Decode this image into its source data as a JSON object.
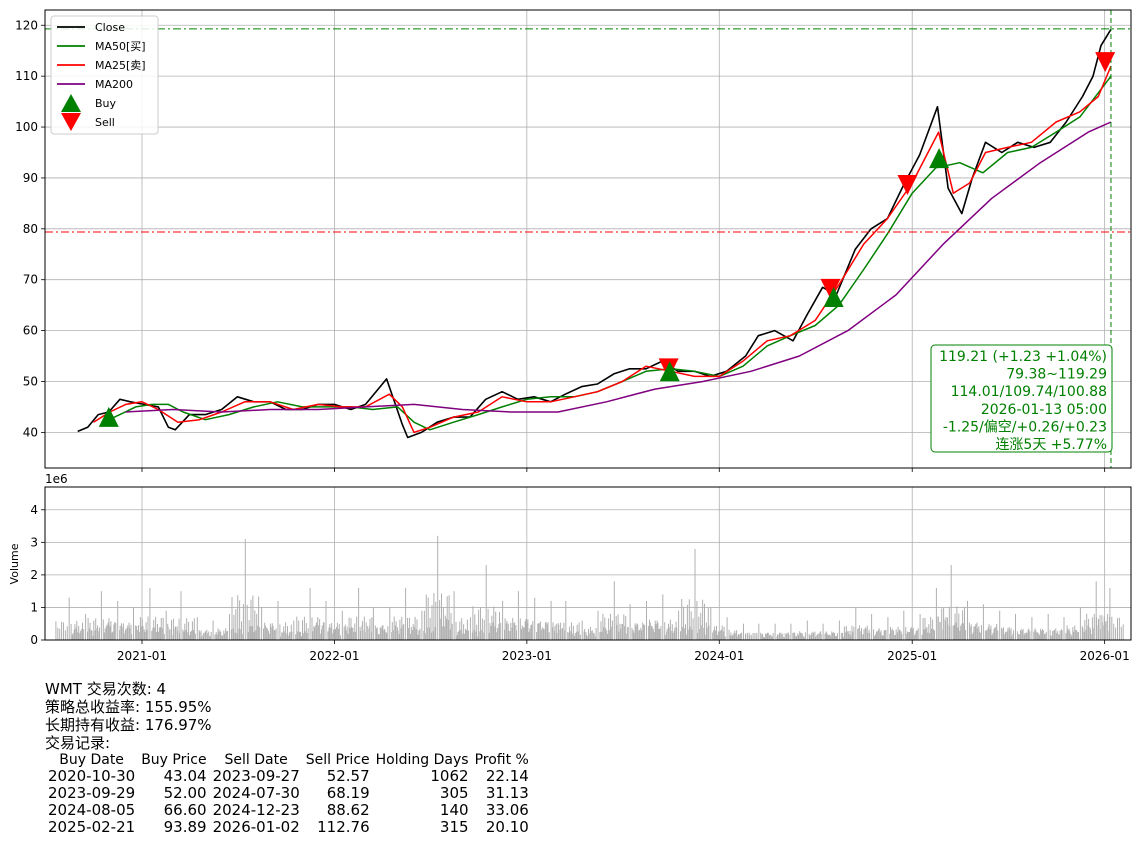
{
  "chart_data": [
    {
      "type": "line",
      "panel": "price",
      "ylim": [
        33,
        123
      ],
      "yticks": [
        40,
        50,
        60,
        70,
        80,
        90,
        100,
        110,
        120
      ],
      "xlim": [
        "2020-07-01",
        "2026-02-20"
      ],
      "xticks": [
        "2021-01",
        "2022-01",
        "2023-01",
        "2024-01",
        "2025-01",
        "2026-01"
      ],
      "grid": true,
      "legend": {
        "position": "top-left",
        "entries": [
          {
            "label": "Close",
            "color": "#000000",
            "kind": "line"
          },
          {
            "label": "MA50[买]",
            "color": "#008000",
            "kind": "line"
          },
          {
            "label": "MA25[卖]",
            "color": "#ff0000",
            "kind": "line"
          },
          {
            "label": "MA200",
            "color": "#800080",
            "kind": "line"
          },
          {
            "label": "Buy",
            "color": "#008000",
            "kind": "marker-up"
          },
          {
            "label": "Sell",
            "color": "#ff0000",
            "kind": "marker-down"
          }
        ]
      },
      "series": [
        {
          "name": "Close",
          "color": "#000000",
          "x": [
            "2020-09-01",
            "2020-09-20",
            "2020-10-10",
            "2020-10-30",
            "2020-11-20",
            "2020-12-10",
            "2021-01-05",
            "2021-02-01",
            "2021-02-20",
            "2021-03-05",
            "2021-04-01",
            "2021-05-01",
            "2021-06-01",
            "2021-07-01",
            "2021-08-01",
            "2021-09-01",
            "2021-10-01",
            "2021-11-01",
            "2021-12-01",
            "2022-01-01",
            "2022-02-01",
            "2022-03-01",
            "2022-04-10",
            "2022-05-10",
            "2022-05-20",
            "2022-06-15",
            "2022-07-15",
            "2022-08-15",
            "2022-09-15",
            "2022-10-15",
            "2022-11-15",
            "2022-12-15",
            "2023-01-15",
            "2023-02-15",
            "2023-03-15",
            "2023-04-15",
            "2023-05-15",
            "2023-06-15",
            "2023-07-15",
            "2023-08-15",
            "2023-09-15",
            "2023-10-15",
            "2023-11-15",
            "2023-12-15",
            "2024-01-15",
            "2024-02-20",
            "2024-03-15",
            "2024-04-15",
            "2024-05-20",
            "2024-06-15",
            "2024-07-15",
            "2024-08-10",
            "2024-09-15",
            "2024-10-15",
            "2024-11-15",
            "2024-12-15",
            "2025-01-15",
            "2025-02-18",
            "2025-03-10",
            "2025-04-05",
            "2025-04-25",
            "2025-05-20",
            "2025-06-20",
            "2025-07-20",
            "2025-08-20",
            "2025-09-20",
            "2025-10-20",
            "2025-11-20",
            "2025-12-10",
            "2025-12-25",
            "2026-01-13"
          ],
          "y": [
            40.2,
            41,
            43.5,
            44,
            46.5,
            46,
            45.5,
            45,
            41,
            40.5,
            43.5,
            43.5,
            44.5,
            47,
            46,
            46,
            44.5,
            44.5,
            45.5,
            45.5,
            44.5,
            45.5,
            50.5,
            41.5,
            39,
            40,
            42,
            43,
            43,
            46.5,
            48,
            46.5,
            47,
            46,
            47.5,
            49,
            49.5,
            51.5,
            52.5,
            52.5,
            54,
            52,
            52,
            51,
            52,
            55,
            59,
            60,
            58,
            63,
            68.5,
            67,
            76,
            80,
            82,
            88.5,
            94.5,
            104,
            88,
            83,
            90,
            97,
            95,
            97,
            96,
            97,
            101,
            106,
            110,
            116,
            119.21
          ]
        },
        {
          "name": "MA50[买]",
          "color": "#008000",
          "x": [
            "2020-10-20",
            "2020-11-20",
            "2020-12-20",
            "2021-01-20",
            "2021-02-20",
            "2021-03-20",
            "2021-05-01",
            "2021-06-15",
            "2021-08-01",
            "2021-09-15",
            "2021-11-01",
            "2021-12-15",
            "2022-02-01",
            "2022-03-15",
            "2022-05-01",
            "2022-06-01",
            "2022-07-01",
            "2022-08-15",
            "2022-10-01",
            "2022-11-15",
            "2023-01-01",
            "2023-02-15",
            "2023-04-01",
            "2023-05-15",
            "2023-07-01",
            "2023-08-15",
            "2023-10-01",
            "2023-11-15",
            "2024-01-01",
            "2024-02-15",
            "2024-04-01",
            "2024-05-15",
            "2024-07-01",
            "2024-08-15",
            "2024-10-01",
            "2024-11-15",
            "2025-01-01",
            "2025-02-15",
            "2025-04-01",
            "2025-05-15",
            "2025-07-01",
            "2025-08-15",
            "2025-10-01",
            "2025-11-15",
            "2026-01-13"
          ],
          "y": [
            42,
            43.5,
            45,
            45.5,
            45.5,
            44,
            42.5,
            43.5,
            45,
            46,
            45,
            45,
            45,
            44.5,
            45,
            42,
            40.5,
            42,
            43.5,
            45,
            46.5,
            47,
            47,
            48,
            50,
            52,
            52.5,
            52,
            51,
            53,
            57,
            59,
            61,
            65,
            72,
            79,
            87,
            92,
            93,
            91,
            95,
            96,
            99,
            102,
            110
          ]
        },
        {
          "name": "MA25[卖]",
          "color": "#ff0000",
          "x": [
            "2020-10-01",
            "2020-11-01",
            "2020-12-01",
            "2021-01-01",
            "2021-02-01",
            "2021-03-10",
            "2021-04-20",
            "2021-06-01",
            "2021-07-15",
            "2021-09-01",
            "2021-10-15",
            "2021-12-01",
            "2022-01-15",
            "2022-03-01",
            "2022-04-15",
            "2022-05-10",
            "2022-06-01",
            "2022-07-01",
            "2022-08-15",
            "2022-10-01",
            "2022-11-15",
            "2023-01-01",
            "2023-02-15",
            "2023-04-01",
            "2023-05-15",
            "2023-07-01",
            "2023-08-15",
            "2023-10-01",
            "2023-11-15",
            "2024-01-01",
            "2024-02-15",
            "2024-04-01",
            "2024-05-15",
            "2024-07-01",
            "2024-08-15",
            "2024-10-01",
            "2024-11-15",
            "2025-01-01",
            "2025-02-20",
            "2025-03-20",
            "2025-04-20",
            "2025-05-20",
            "2025-07-01",
            "2025-08-15",
            "2025-10-01",
            "2025-11-15",
            "2025-12-20",
            "2026-01-13"
          ],
          "y": [
            42,
            44,
            45.5,
            46,
            44.5,
            42,
            42.5,
            44,
            46,
            46,
            44.5,
            45.5,
            45,
            45,
            47.5,
            45,
            40,
            41,
            43,
            44,
            47,
            46,
            46,
            47,
            48,
            50,
            53,
            52,
            51,
            51,
            54,
            58,
            59,
            62,
            69,
            77,
            82,
            89,
            99,
            87,
            89,
            95,
            96,
            97,
            101,
            103,
            106,
            112
          ]
        },
        {
          "name": "MA200",
          "color": "#800080",
          "x": [
            "2020-12-01",
            "2021-03-01",
            "2021-06-01",
            "2021-09-01",
            "2021-12-01",
            "2022-03-01",
            "2022-06-01",
            "2022-09-01",
            "2022-12-01",
            "2023-03-01",
            "2023-06-01",
            "2023-09-01",
            "2023-12-01",
            "2024-03-01",
            "2024-06-01",
            "2024-09-01",
            "2024-12-01",
            "2025-03-01",
            "2025-06-01",
            "2025-09-01",
            "2025-12-01",
            "2026-01-13"
          ],
          "y": [
            44,
            44.5,
            44,
            44.5,
            44.5,
            45,
            45.5,
            44.5,
            44,
            44,
            46,
            48.5,
            50,
            52,
            55,
            60,
            67,
            77,
            86,
            93,
            99,
            101
          ]
        }
      ],
      "markers": [
        {
          "kind": "Buy",
          "x": "2020-10-30",
          "y": 43.04
        },
        {
          "kind": "Sell",
          "x": "2023-09-27",
          "y": 52.57
        },
        {
          "kind": "Buy",
          "x": "2023-09-29",
          "y": 52.0
        },
        {
          "kind": "Sell",
          "x": "2024-07-30",
          "y": 68.19
        },
        {
          "kind": "Buy",
          "x": "2024-08-05",
          "y": 66.6
        },
        {
          "kind": "Sell",
          "x": "2024-12-23",
          "y": 88.62
        },
        {
          "kind": "Buy",
          "x": "2025-02-21",
          "y": 93.89
        },
        {
          "kind": "Sell",
          "x": "2026-01-02",
          "y": 112.76
        }
      ],
      "reference_lines": [
        {
          "orientation": "horizontal",
          "y": 119.29,
          "color": "#008000",
          "style": "dash-dot"
        },
        {
          "orientation": "horizontal",
          "y": 79.38,
          "color": "#ff0000",
          "style": "dash-dot"
        },
        {
          "orientation": "vertical",
          "x": "2026-01-13",
          "color": "#008000",
          "style": "dashed"
        }
      ],
      "annotation": {
        "position": "bottom-right",
        "color": "#008000",
        "lines": [
          "119.21 (+1.23 +1.04%)",
          "79.38~119.29",
          "114.01/109.74/100.88",
          "2026-01-13 05:00",
          "-1.25/偏空/+0.26/+0.23",
          "连涨5天 +5.77%"
        ]
      }
    },
    {
      "type": "bar",
      "panel": "volume",
      "ylabel": "Volume",
      "yscale_label": "1e6",
      "ylim": [
        0,
        4.7
      ],
      "yticks": [
        0,
        1,
        2,
        3,
        4
      ],
      "xlim": [
        "2020-07-01",
        "2026-02-20"
      ],
      "xticks": [
        "2021-01",
        "2022-01",
        "2023-01",
        "2024-01",
        "2025-01",
        "2026-01"
      ],
      "grid": true,
      "color": "#b0b0b0",
      "series": [
        {
          "x": [
            "2020-08-15",
            "2020-09-15",
            "2020-10-15",
            "2020-11-15",
            "2020-12-15",
            "2021-01-15",
            "2021-02-15",
            "2021-03-15",
            "2021-04-15",
            "2021-05-15",
            "2021-06-15",
            "2021-07-15",
            "2021-08-15",
            "2021-09-15",
            "2021-10-15",
            "2021-11-15",
            "2021-12-15",
            "2022-01-15",
            "2022-02-15",
            "2022-03-15",
            "2022-04-15",
            "2022-05-15",
            "2022-06-15",
            "2022-07-15",
            "2022-08-15",
            "2022-09-15",
            "2022-10-15",
            "2022-11-15",
            "2022-12-15",
            "2023-01-15",
            "2023-02-15",
            "2023-03-15",
            "2023-04-15",
            "2023-05-15",
            "2023-06-15",
            "2023-07-15",
            "2023-08-15",
            "2023-09-15",
            "2023-10-15",
            "2023-11-15",
            "2023-12-15",
            "2024-01-15",
            "2024-02-15",
            "2024-03-15",
            "2024-04-15",
            "2024-05-15",
            "2024-06-15",
            "2024-07-15",
            "2024-08-15",
            "2024-09-15",
            "2024-10-15",
            "2024-11-15",
            "2024-12-15",
            "2025-01-15",
            "2025-02-15",
            "2025-03-15",
            "2025-04-15",
            "2025-05-15",
            "2025-06-15",
            "2025-07-15",
            "2025-08-15",
            "2025-09-15",
            "2025-10-15",
            "2025-11-15",
            "2025-12-15",
            "2026-01-10"
          ],
          "y": [
            1.3,
            0.8,
            1.5,
            1.2,
            1.0,
            1.6,
            0.9,
            1.5,
            0.7,
            0.6,
            0.8,
            3.1,
            1.0,
            1.2,
            0.6,
            1.6,
            1.2,
            0.9,
            1.6,
            1.0,
            1.0,
            1.6,
            0.9,
            3.2,
            1.5,
            0.7,
            2.3,
            1.2,
            1.5,
            1.3,
            1.2,
            1.2,
            0.6,
            0.9,
            1.8,
            1.1,
            1.2,
            1.4,
            0.9,
            2.8,
            1.0,
            0.7,
            0.5,
            0.5,
            0.5,
            0.5,
            0.6,
            0.5,
            0.6,
            1.0,
            0.8,
            0.7,
            0.9,
            0.8,
            1.6,
            2.3,
            1.2,
            1.1,
            0.9,
            0.8,
            0.7,
            0.8,
            0.7,
            1.0,
            1.8,
            1.6
          ]
        }
      ]
    }
  ],
  "info": {
    "trade_count": "WMT 交易次数: 4",
    "strategy_return": "策略总收益率: 155.95%",
    "hold_return": "长期持有收益: 176.97%",
    "records_title": "交易记录:",
    "table_headers": [
      "Buy Date",
      "Buy Price",
      "Sell Date",
      "Sell Price",
      "Holding Days",
      "Profit %"
    ],
    "table_rows": [
      [
        "2020-10-30",
        "43.04",
        "2023-09-27",
        "52.57",
        "1062",
        "22.14"
      ],
      [
        "2023-09-29",
        "52.00",
        "2024-07-30",
        "68.19",
        "305",
        "31.13"
      ],
      [
        "2024-08-05",
        "66.60",
        "2024-12-23",
        "88.62",
        "140",
        "33.06"
      ],
      [
        "2025-02-21",
        "93.89",
        "2026-01-02",
        "112.76",
        "315",
        "20.10"
      ]
    ]
  }
}
